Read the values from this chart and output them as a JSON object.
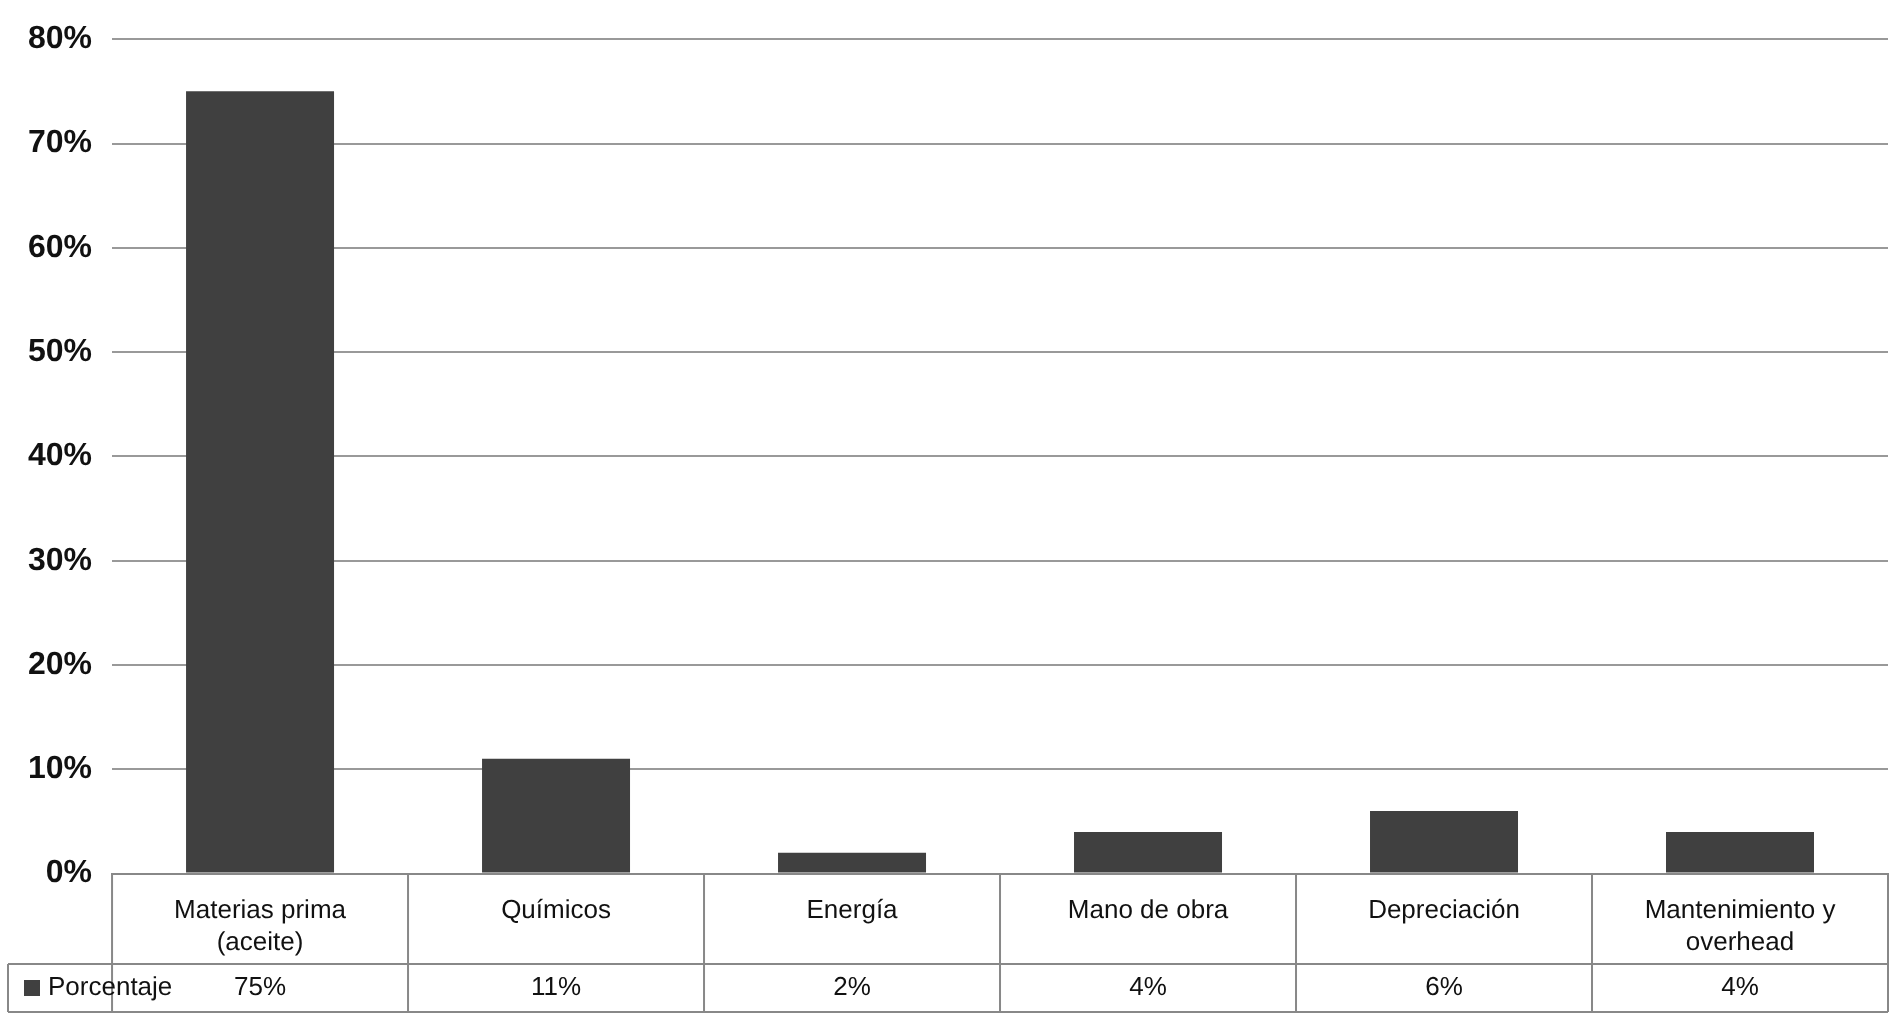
{
  "chart_data": {
    "type": "bar",
    "categories": [
      "Materias prima (aceite)",
      "Químicos",
      "Energía",
      "Mano de obra",
      "Depreciación",
      "Mantenimiento y overhead"
    ],
    "series": [
      {
        "name": "Porcentaje",
        "color": "#404040",
        "values": [
          75,
          11,
          2,
          4,
          6,
          4
        ],
        "value_labels": [
          "75%",
          "11%",
          "2%",
          "4%",
          "6%",
          "4%"
        ]
      }
    ],
    "ylim": [
      0,
      80
    ],
    "yticks": [
      {
        "value": 0,
        "label": "0%"
      },
      {
        "value": 10,
        "label": "10%"
      },
      {
        "value": 20,
        "label": "20%"
      },
      {
        "value": 30,
        "label": "30%"
      },
      {
        "value": 40,
        "label": "40%"
      },
      {
        "value": 50,
        "label": "50%"
      },
      {
        "value": 60,
        "label": "60%"
      },
      {
        "value": 70,
        "label": "70%"
      },
      {
        "value": 80,
        "label": "80%"
      }
    ],
    "grid": "y",
    "legend": "bottom left"
  }
}
